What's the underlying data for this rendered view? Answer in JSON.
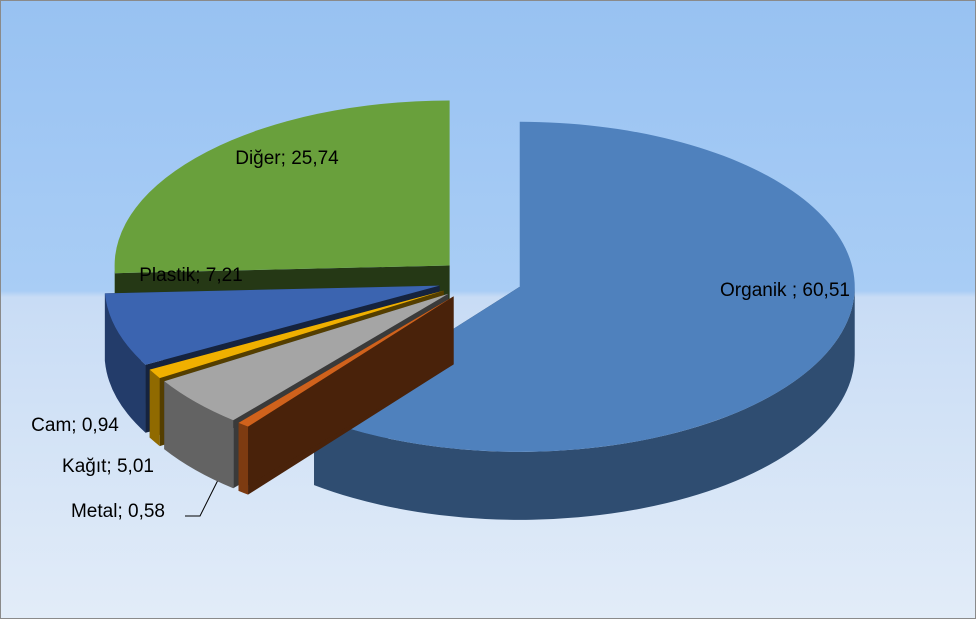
{
  "chart_data": {
    "type": "pie3d",
    "categories": [
      "Organik ",
      "Metal",
      "Kağıt",
      "Cam",
      "Plastik",
      "Diğer"
    ],
    "values": [
      60.51,
      0.58,
      5.01,
      0.94,
      7.21,
      25.74
    ],
    "value_labels": [
      "60,51",
      "0,58",
      "5,01",
      "0,94",
      "7,21",
      "25,74"
    ],
    "label_separator": "; ",
    "colors": [
      "#4f81bd",
      "#d0621c",
      "#a5a5a5",
      "#f0b000",
      "#3b64b0",
      "#69a03c"
    ],
    "exploded": true
  }
}
